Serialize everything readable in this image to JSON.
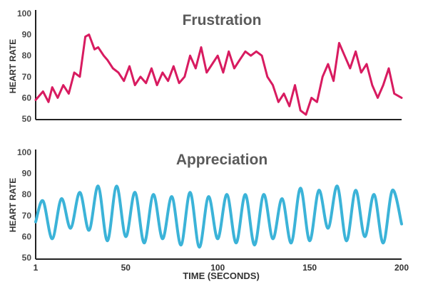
{
  "chart_data": [
    {
      "type": "line",
      "title": "Frustration",
      "ylabel": "HEART RATE",
      "xlabel": "",
      "xlim": [
        1,
        200
      ],
      "ylim": [
        50,
        100
      ],
      "yticks": [
        50,
        60,
        70,
        80,
        90,
        100
      ],
      "series": [
        {
          "name": "Frustration",
          "color": "#d81b60",
          "x": [
            1,
            5,
            8,
            10,
            13,
            16,
            19,
            22,
            25,
            28,
            30,
            33,
            35,
            38,
            40,
            43,
            46,
            49,
            52,
            55,
            58,
            61,
            64,
            67,
            70,
            73,
            76,
            79,
            82,
            85,
            88,
            91,
            94,
            97,
            100,
            103,
            106,
            109,
            112,
            115,
            118,
            121,
            124,
            127,
            130,
            133,
            136,
            139,
            142,
            145,
            148,
            151,
            154,
            157,
            160,
            163,
            166,
            169,
            172,
            175,
            178,
            181,
            184,
            187,
            190,
            193,
            196,
            200
          ],
          "y": [
            59,
            63,
            58,
            65,
            60,
            66,
            62,
            72,
            70,
            89,
            90,
            83,
            84,
            80,
            78,
            74,
            72,
            68,
            75,
            66,
            70,
            67,
            74,
            66,
            72,
            68,
            75,
            67,
            70,
            80,
            74,
            84,
            72,
            76,
            80,
            72,
            82,
            74,
            78,
            82,
            80,
            82,
            80,
            70,
            66,
            58,
            62,
            56,
            66,
            54,
            52,
            60,
            58,
            70,
            76,
            68,
            86,
            80,
            74,
            82,
            72,
            76,
            66,
            60,
            66,
            74,
            62,
            60
          ]
        }
      ]
    },
    {
      "type": "line",
      "title": "Appreciation",
      "ylabel": "HEART RATE",
      "xlabel": "TIME (SECONDS)",
      "xlim": [
        1,
        200
      ],
      "ylim": [
        50,
        100
      ],
      "yticks": [
        50,
        60,
        70,
        80,
        90,
        100
      ],
      "xticks": [
        1,
        50,
        100,
        150,
        200
      ],
      "series": [
        {
          "name": "Appreciation",
          "color": "#3bb3d8",
          "x": [
            1,
            5,
            10,
            15,
            20,
            25,
            30,
            35,
            40,
            45,
            50,
            55,
            60,
            65,
            70,
            75,
            80,
            85,
            90,
            95,
            100,
            105,
            110,
            115,
            120,
            125,
            130,
            135,
            140,
            145,
            150,
            155,
            160,
            165,
            170,
            175,
            180,
            185,
            190,
            195,
            200
          ],
          "y": [
            67,
            77,
            59,
            78,
            64,
            81,
            63,
            84,
            58,
            84,
            60,
            81,
            57,
            80,
            59,
            79,
            56,
            81,
            55,
            79,
            59,
            80,
            57,
            80,
            56,
            80,
            59,
            78,
            57,
            83,
            58,
            82,
            64,
            84,
            58,
            82,
            60,
            80,
            57,
            82,
            66
          ]
        }
      ]
    }
  ]
}
